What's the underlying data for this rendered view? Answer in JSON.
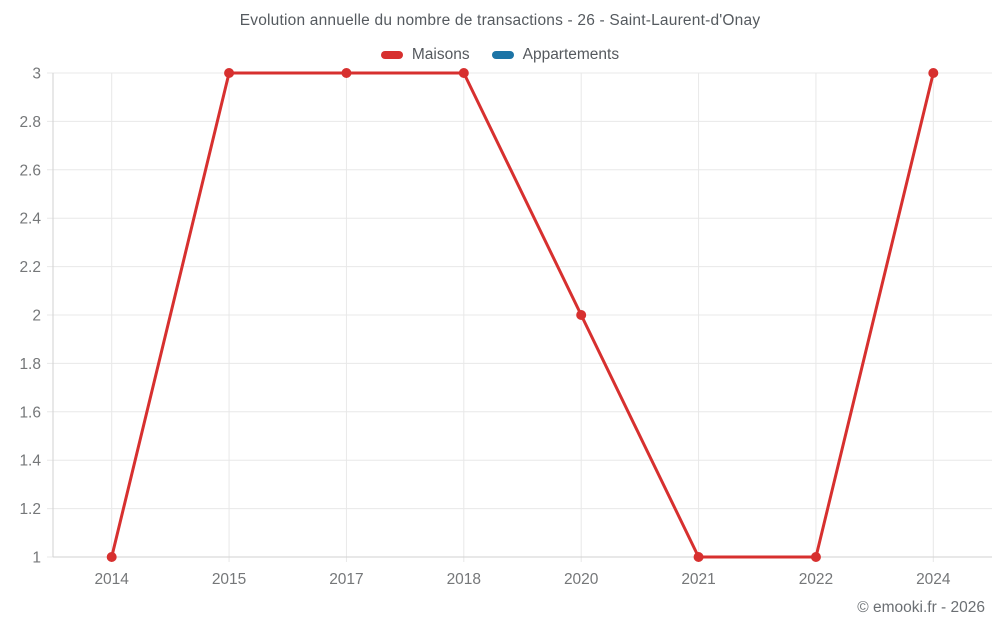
{
  "title": "Evolution annuelle du nombre de transactions - 26 - Saint-Laurent-d'Onay",
  "footer": "© emooki.fr - 2026",
  "colors": {
    "maisons": "#d7302f",
    "appartements": "#1c74a6",
    "grid": "#e8e8e8",
    "axis": "#d2d2d2",
    "tick_label": "#757779",
    "title_text": "#555a5f",
    "footer_text": "#6b6f73"
  },
  "chart_data": {
    "type": "line",
    "title": "Evolution annuelle du nombre de transactions - 26 - Saint-Laurent-d'Onay",
    "categories": [
      "2014",
      "2015",
      "2017",
      "2018",
      "2020",
      "2021",
      "2022",
      "2024"
    ],
    "series": [
      {
        "name": "Maisons",
        "color": "#d7302f",
        "values": [
          1,
          3,
          3,
          3,
          2,
          1,
          1,
          3
        ]
      },
      {
        "name": "Appartements",
        "color": "#1c74a6",
        "values": []
      }
    ],
    "xlabel": "",
    "ylabel": "",
    "ylim": [
      1,
      3
    ],
    "ytick_step": 0.2,
    "grid": true,
    "legend_position": "top",
    "marker_radius": 5,
    "line_width": 3
  }
}
